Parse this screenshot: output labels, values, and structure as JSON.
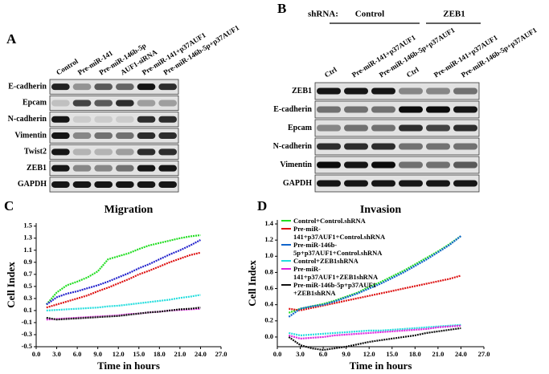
{
  "panel_labels": [
    "A",
    "B",
    "C",
    "D"
  ],
  "blots": {
    "A": {
      "columns": [
        "Control",
        "Pre-miR-141",
        "Pre-miR-146b-5p",
        "AUF1-siRNA",
        "Pre-miR-141+p37AUF1",
        "Pre-miR-146b-5p+p37AUF1"
      ],
      "rows": [
        "E-cadherin",
        "Epcam",
        "N-cadherin",
        "Vimentin",
        "Twist2",
        "ZEB1",
        "GAPDH"
      ]
    },
    "B": {
      "shrna_label": "shRNA:",
      "groups": [
        "Control",
        "ZEB1"
      ],
      "columns": [
        "Ctrl",
        "Pre-miR-141+p37AUF1",
        "Pre-miR-146b-5p+p37AUF1",
        "Ctrl",
        "Pre-miR-141+p37AUF1",
        "Pre-miR-146b-5p+p37AUF1"
      ],
      "rows": [
        "ZEB1",
        "E-cadherin",
        "Epcam",
        "N-cadherin",
        "Vimentin",
        "GAPDH"
      ]
    }
  },
  "chart_data": [
    {
      "type": "line",
      "title": "Migration",
      "xlabel": "Time in hours",
      "ylabel": "Cell Index",
      "x": [
        0,
        1.5,
        3,
        4.5,
        6,
        7.5,
        9,
        10.5,
        12,
        13.5,
        15,
        16.5,
        18,
        19.5,
        21,
        22.5,
        24
      ],
      "xlim": [
        0,
        27
      ],
      "xticks": [
        {
          "value": 0,
          "label": "0.0"
        },
        {
          "value": 3,
          "label": "3.0"
        },
        {
          "value": 6,
          "label": "6.0"
        },
        {
          "value": 9,
          "label": "9.0"
        },
        {
          "value": 12,
          "label": "12.0"
        },
        {
          "value": 15,
          "label": "15.0"
        },
        {
          "value": 18,
          "label": "18.0"
        },
        {
          "value": 21,
          "label": "21.0"
        },
        {
          "value": 24,
          "label": "24.0"
        },
        {
          "value": 27,
          "label": "27.0"
        }
      ],
      "ylim": [
        -0.5,
        1.55
      ],
      "yticks": [
        -0.5,
        -0.3,
        -0.1,
        0.1,
        0.3,
        0.5,
        0.7,
        0.9,
        1.1,
        1.3,
        1.5
      ],
      "series": [
        {
          "color": "#22dd22",
          "values": [
            null,
            0.2,
            0.4,
            0.52,
            0.58,
            0.65,
            0.75,
            0.95,
            1.0,
            1.05,
            1.12,
            1.18,
            1.22,
            1.26,
            1.3,
            1.33,
            1.35
          ]
        },
        {
          "color": "#2222cc",
          "values": [
            null,
            0.2,
            0.32,
            0.38,
            0.42,
            0.47,
            0.52,
            0.58,
            0.65,
            0.72,
            0.8,
            0.87,
            0.95,
            1.03,
            1.1,
            1.18,
            1.27
          ]
        },
        {
          "color": "#dd1111",
          "values": [
            null,
            0.15,
            0.2,
            0.25,
            0.3,
            0.35,
            0.42,
            0.48,
            0.55,
            0.62,
            0.7,
            0.76,
            0.83,
            0.9,
            0.96,
            1.02,
            1.06
          ]
        },
        {
          "color": "#22dddd",
          "values": [
            null,
            0.1,
            0.11,
            0.12,
            0.13,
            0.14,
            0.15,
            0.17,
            0.18,
            0.2,
            0.22,
            0.24,
            0.26,
            0.28,
            0.31,
            0.33,
            0.36
          ]
        },
        {
          "color": "#dd22dd",
          "values": [
            null,
            -0.05,
            -0.04,
            -0.03,
            -0.02,
            -0.01,
            0,
            0.01,
            0.02,
            0.04,
            0.05,
            0.07,
            0.08,
            0.1,
            0.11,
            0.12,
            0.13
          ]
        },
        {
          "color": "#111111",
          "values": [
            null,
            -0.02,
            -0.05,
            -0.04,
            -0.03,
            -0.02,
            -0.01,
            0,
            0.01,
            0.03,
            0.05,
            0.07,
            0.08,
            0.1,
            0.12,
            0.13,
            0.15
          ]
        }
      ]
    },
    {
      "type": "line",
      "title": "Invasion",
      "xlabel": "Time in hours",
      "ylabel": "Cell Index",
      "x": [
        0,
        1.5,
        3,
        4.5,
        6,
        7.5,
        9,
        10.5,
        12,
        13.5,
        15,
        16.5,
        18,
        19.5,
        21,
        22.5,
        24
      ],
      "xlim": [
        0,
        27
      ],
      "xticks": [
        {
          "value": 0,
          "label": "0.0"
        },
        {
          "value": 3,
          "label": "3.0"
        },
        {
          "value": 6,
          "label": "6.0"
        },
        {
          "value": 9,
          "label": "9.0"
        },
        {
          "value": 12,
          "label": "12.0"
        },
        {
          "value": 15,
          "label": "15.0"
        },
        {
          "value": 18,
          "label": "18.0"
        },
        {
          "value": 21,
          "label": "21.0"
        },
        {
          "value": 24,
          "label": "24.0"
        },
        {
          "value": 27,
          "label": "27.0"
        }
      ],
      "ylim": [
        -0.12,
        1.45
      ],
      "yticks": [
        {
          "value": 0,
          "label": "0.0"
        },
        0.2,
        0.4,
        0.6,
        0.8,
        {
          "value": 1,
          "label": "1.0"
        },
        1.2,
        1.4
      ],
      "series": [
        {
          "name": "Control+Control.shRNA",
          "color": "#22dd22",
          "values": [
            null,
            0.3,
            0.35,
            0.38,
            0.41,
            0.45,
            0.5,
            0.55,
            0.62,
            0.68,
            0.75,
            0.82,
            0.9,
            0.98,
            1.06,
            1.15,
            1.25
          ]
        },
        {
          "name": "Pre-miR-141+p37AUF1+Control.shRNA",
          "color": "#dd1111",
          "values": [
            null,
            0.35,
            0.33,
            0.36,
            0.39,
            0.42,
            0.45,
            0.48,
            0.51,
            0.54,
            0.57,
            0.6,
            0.63,
            0.66,
            0.69,
            0.72,
            0.76
          ]
        },
        {
          "name": "Pre-miR-146b-5p+p37AUF1+Control.shRNA",
          "color": "#1166cc",
          "values": [
            null,
            0.25,
            0.35,
            0.38,
            0.4,
            0.44,
            0.49,
            0.54,
            0.6,
            0.66,
            0.73,
            0.8,
            0.88,
            0.96,
            1.05,
            1.14,
            1.25
          ]
        },
        {
          "name": "Control+ZEB1shRNA",
          "color": "#22dddd",
          "values": [
            null,
            0.05,
            0.02,
            0.03,
            0.04,
            0.05,
            0.06,
            0.07,
            0.08,
            0.08,
            0.09,
            0.1,
            0.11,
            0.12,
            0.13,
            0.14,
            0.15
          ]
        },
        {
          "name": "Pre-miR-141+p37AUF1+ZEB1shRNA",
          "color": "#dd22dd",
          "values": [
            null,
            0.02,
            -0.02,
            -0.01,
            0,
            0.02,
            0.03,
            0.04,
            0.05,
            0.06,
            0.07,
            0.08,
            0.09,
            0.1,
            0.12,
            0.13,
            0.14
          ]
        },
        {
          "name": "Pre-miR-146b-5p+p37AUF1 +ZEB1shRNA",
          "color": "#111111",
          "values": [
            null,
            0,
            -0.1,
            -0.14,
            -0.16,
            -0.14,
            -0.12,
            -0.09,
            -0.06,
            -0.04,
            -0.02,
            0,
            0.02,
            0.05,
            0.07,
            0.09,
            0.11
          ]
        }
      ]
    }
  ]
}
